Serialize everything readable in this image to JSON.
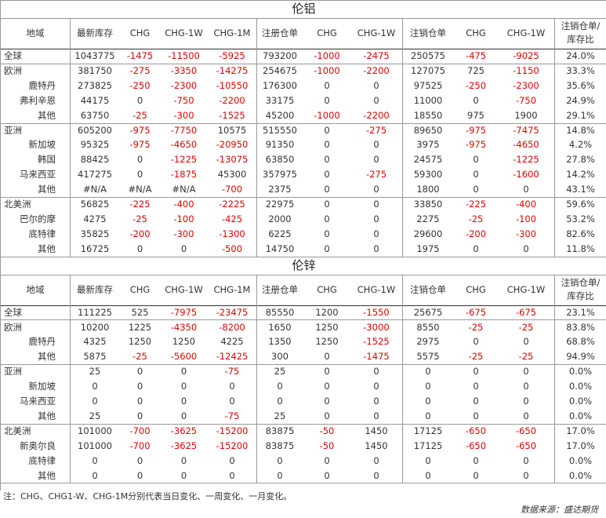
{
  "sections": [
    {
      "title": "伦铝",
      "headers": [
        "地域",
        "最新库存",
        "CHG",
        "CHG-1W",
        "CHG-1M",
        "注册仓单",
        "CHG",
        "CHG-1W",
        "注销仓单",
        "CHG",
        "CHG-1W",
        "注销仓单/库存比"
      ],
      "groups": [
        {
          "rows": [
            {
              "name": "全球",
              "indent": false,
              "values": [
                "1043775",
                "-1475",
                "-11500",
                "-5925",
                "793200",
                "-1000",
                "-2475",
                "250575",
                "-475",
                "-9025",
                "24.0%"
              ]
            }
          ]
        },
        {
          "rows": [
            {
              "name": "欧洲",
              "indent": false,
              "values": [
                "381750",
                "-275",
                "-3350",
                "-14275",
                "254675",
                "-1000",
                "-2200",
                "127075",
                "725",
                "-1150",
                "33.3%"
              ]
            },
            {
              "name": "鹿特丹",
              "indent": true,
              "values": [
                "273825",
                "-250",
                "-2300",
                "-10550",
                "176300",
                "0",
                "0",
                "97525",
                "-250",
                "-2300",
                "35.6%"
              ]
            },
            {
              "name": "弗利辛恩",
              "indent": true,
              "values": [
                "44175",
                "0",
                "-750",
                "-2200",
                "33175",
                "0",
                "0",
                "11000",
                "0",
                "-750",
                "24.9%"
              ]
            },
            {
              "name": "其他",
              "indent": true,
              "values": [
                "63750",
                "-25",
                "-300",
                "-1525",
                "45200",
                "-1000",
                "-2200",
                "18550",
                "975",
                "1900",
                "29.1%"
              ]
            }
          ]
        },
        {
          "rows": [
            {
              "name": "亚洲",
              "indent": false,
              "values": [
                "605200",
                "-975",
                "-7750",
                "10575",
                "515550",
                "0",
                "-275",
                "89650",
                "-975",
                "-7475",
                "14.8%"
              ]
            },
            {
              "name": "新加坡",
              "indent": true,
              "values": [
                "95325",
                "-975",
                "-4650",
                "-20950",
                "91350",
                "0",
                "0",
                "3975",
                "-975",
                "-4650",
                "4.2%"
              ]
            },
            {
              "name": "韩国",
              "indent": true,
              "values": [
                "88425",
                "0",
                "-1225",
                "-13075",
                "63850",
                "0",
                "0",
                "24575",
                "0",
                "-1225",
                "27.8%"
              ]
            },
            {
              "name": "马来西亚",
              "indent": true,
              "values": [
                "417275",
                "0",
                "-1875",
                "45300",
                "357975",
                "0",
                "-275",
                "59300",
                "0",
                "-1600",
                "14.2%"
              ]
            },
            {
              "name": "其他",
              "indent": true,
              "values": [
                "#N/A",
                "#N/A",
                "#N/A",
                "-700",
                "2375",
                "0",
                "0",
                "1800",
                "0",
                "0",
                "43.1%"
              ]
            }
          ]
        },
        {
          "rows": [
            {
              "name": "北美洲",
              "indent": false,
              "values": [
                "56825",
                "-225",
                "-400",
                "-2225",
                "22975",
                "0",
                "0",
                "33850",
                "-225",
                "-400",
                "59.6%"
              ]
            },
            {
              "name": "巴尔的摩",
              "indent": true,
              "values": [
                "4275",
                "-25",
                "-100",
                "-425",
                "2000",
                "0",
                "0",
                "2275",
                "-25",
                "-100",
                "53.2%"
              ]
            },
            {
              "name": "底特律",
              "indent": true,
              "values": [
                "35825",
                "-200",
                "-300",
                "-1300",
                "6225",
                "0",
                "0",
                "29600",
                "-200",
                "-300",
                "82.6%"
              ]
            },
            {
              "name": "其他",
              "indent": true,
              "values": [
                "16725",
                "0",
                "0",
                "-500",
                "14750",
                "0",
                "0",
                "1975",
                "0",
                "0",
                "11.8%"
              ]
            }
          ]
        }
      ]
    },
    {
      "title": "伦锌",
      "headers": [
        "地域",
        "最新库存",
        "CHG",
        "CHG-1W",
        "CHG-1M",
        "注册仓单",
        "CHG",
        "CHG-1W",
        "注销仓单",
        "CHG",
        "CHG-1W",
        "注销仓单/库存比"
      ],
      "groups": [
        {
          "rows": [
            {
              "name": "全球",
              "indent": false,
              "values": [
                "111225",
                "525",
                "-7975",
                "-23475",
                "85550",
                "1200",
                "-1550",
                "25675",
                "-675",
                "-675",
                "23.1%"
              ]
            }
          ]
        },
        {
          "rows": [
            {
              "name": "欧洲",
              "indent": false,
              "values": [
                "10200",
                "1225",
                "-4350",
                "-8200",
                "1650",
                "1250",
                "-3000",
                "8550",
                "-25",
                "-25",
                "83.8%"
              ]
            },
            {
              "name": "鹿特丹",
              "indent": true,
              "values": [
                "4325",
                "1250",
                "1250",
                "4225",
                "1350",
                "1250",
                "-1525",
                "2975",
                "0",
                "0",
                "68.8%"
              ]
            },
            {
              "name": "其他",
              "indent": true,
              "values": [
                "5875",
                "-25",
                "-5600",
                "-12425",
                "300",
                "0",
                "-1475",
                "5575",
                "-25",
                "-25",
                "94.9%"
              ]
            }
          ]
        },
        {
          "rows": [
            {
              "name": "亚洲",
              "indent": false,
              "values": [
                "25",
                "0",
                "0",
                "-75",
                "25",
                "0",
                "0",
                "0",
                "0",
                "0",
                "0.0%"
              ]
            },
            {
              "name": "新加坡",
              "indent": true,
              "values": [
                "0",
                "0",
                "0",
                "0",
                "0",
                "0",
                "0",
                "0",
                "0",
                "0",
                "0.0%"
              ]
            },
            {
              "name": "马来西亚",
              "indent": true,
              "values": [
                "0",
                "0",
                "0",
                "0",
                "0",
                "0",
                "0",
                "0",
                "0",
                "0",
                "0.0%"
              ]
            },
            {
              "name": "其他",
              "indent": true,
              "values": [
                "25",
                "0",
                "0",
                "-75",
                "25",
                "0",
                "0",
                "0",
                "0",
                "0",
                "0.0%"
              ]
            }
          ]
        },
        {
          "rows": [
            {
              "name": "北美洲",
              "indent": false,
              "values": [
                "101000",
                "-700",
                "-3625",
                "-15200",
                "83875",
                "-50",
                "1450",
                "17125",
                "-650",
                "-650",
                "17.0%"
              ]
            },
            {
              "name": "新奥尔良",
              "indent": true,
              "values": [
                "101000",
                "-700",
                "-3625",
                "-15200",
                "83875",
                "-50",
                "1450",
                "17125",
                "-650",
                "-650",
                "17.0%"
              ]
            },
            {
              "name": "底特律",
              "indent": true,
              "values": [
                "0",
                "0",
                "0",
                "0",
                "0",
                "0",
                "0",
                "0",
                "0",
                "0",
                "0.0%"
              ]
            },
            {
              "name": "其他",
              "indent": true,
              "values": [
                "0",
                "0",
                "0",
                "0",
                "0",
                "0",
                "0",
                "0",
                "0",
                "0",
                "0.0%"
              ]
            }
          ]
        }
      ]
    }
  ],
  "note": "注：CHG、CHG1-W、CHG-1M分别代表当日变化、一周变化、一月变化。",
  "source": "数据来源：盛达期货",
  "colors": {
    "negative": "#e60000",
    "text": "#333333",
    "grid": "#999999"
  }
}
